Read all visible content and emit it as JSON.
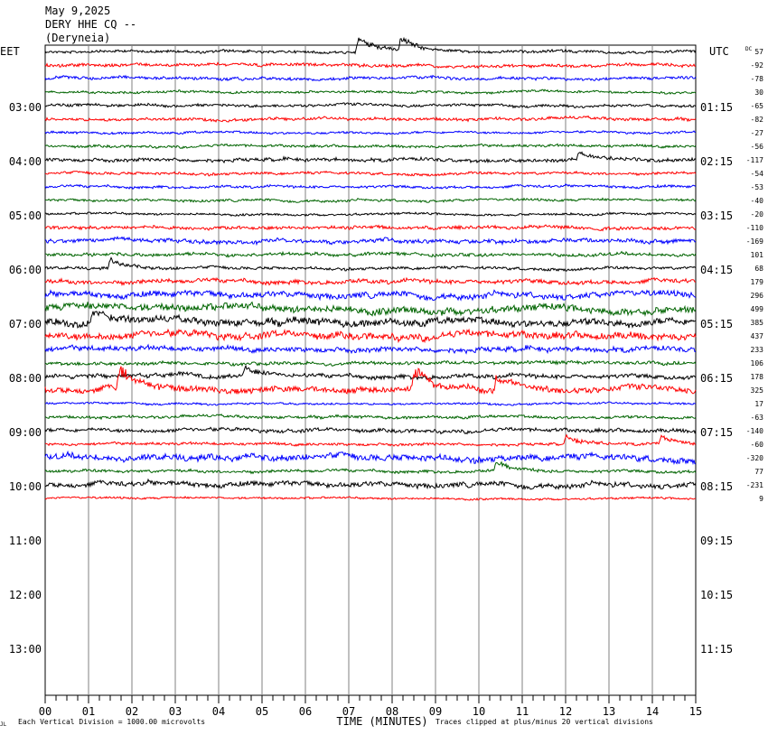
{
  "header": {
    "date": "May 9,2025",
    "station": "DERY HHE CQ --",
    "location": "(Deryneia)"
  },
  "left_tz": "EET",
  "right_tz": "UTC",
  "dc_label": "DC",
  "corner_mark": "JL",
  "footer": {
    "scale_note": "Each Vertical Division = 1000.00 microvolts",
    "clip_note": "Traces clipped at plus/minus 20 vertical divisions"
  },
  "chart_data": {
    "type": "line",
    "xlabel": "TIME (MINUTES)",
    "xlim": [
      0,
      15
    ],
    "x_ticks": [
      "00",
      "01",
      "02",
      "03",
      "04",
      "05",
      "06",
      "07",
      "08",
      "09",
      "10",
      "11",
      "12",
      "13",
      "14",
      "15"
    ],
    "left_hour_labels": [
      "03:00",
      "04:00",
      "05:00",
      "06:00",
      "07:00",
      "08:00",
      "09:00",
      "10:00",
      "11:00",
      "12:00",
      "13:00"
    ],
    "right_hour_labels": [
      "01:15",
      "02:15",
      "03:15",
      "04:15",
      "05:15",
      "06:15",
      "07:15",
      "08:15",
      "09:15",
      "10:15",
      "11:15"
    ],
    "trace_colors": [
      "#000000",
      "#ff0000",
      "#0000ff",
      "#006400"
    ],
    "dc_offsets": [
      57,
      -92,
      -78,
      30,
      -65,
      -82,
      -27,
      -56,
      -117,
      -54,
      -53,
      -40,
      -20,
      -110,
      -169,
      101,
      68,
      179,
      296,
      499,
      385,
      437,
      233,
      106,
      178,
      325,
      17,
      -63,
      -140,
      -60,
      -320,
      77,
      -231,
      9
    ],
    "trace_count": 34,
    "events": [
      {
        "trace": 0,
        "minute": 7.2,
        "amplitude": 3.0
      },
      {
        "trace": 0,
        "minute": 8.2,
        "amplitude": 2.5
      },
      {
        "trace": 8,
        "minute": 12.3,
        "amplitude": 1.5
      },
      {
        "trace": 16,
        "minute": 1.5,
        "amplitude": 1.8
      },
      {
        "trace": 20,
        "minute": 1.1,
        "amplitude": 2.0
      },
      {
        "trace": 25,
        "minute": 1.7,
        "amplitude": 4.0
      },
      {
        "trace": 25,
        "minute": 8.5,
        "amplitude": 4.0
      },
      {
        "trace": 25,
        "minute": 10.4,
        "amplitude": 3.0
      },
      {
        "trace": 24,
        "minute": 4.6,
        "amplitude": 2.0
      },
      {
        "trace": 29,
        "minute": 12.0,
        "amplitude": 1.5
      },
      {
        "trace": 29,
        "minute": 14.2,
        "amplitude": 1.5
      },
      {
        "trace": 31,
        "minute": 10.4,
        "amplitude": 2.0
      }
    ]
  }
}
